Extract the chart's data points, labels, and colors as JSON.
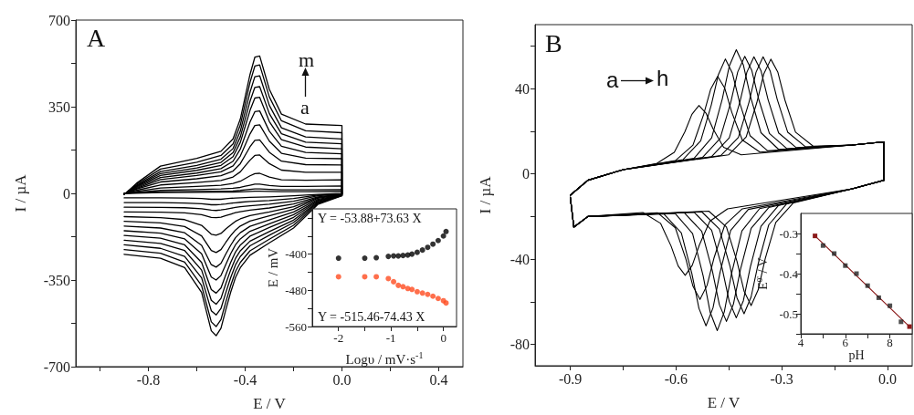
{
  "chart_data": [
    {
      "type": "line",
      "xlabel": "E / V",
      "ylabel": "I / µA",
      "marker": "none",
      "xlim": [
        -1.1,
        0.5
      ],
      "xticks": [
        {
          "value": -1.0,
          "label": null
        },
        -0.8,
        {
          "value": -0.6,
          "label": null
        },
        -0.4,
        {
          "value": -0.2,
          "label": null
        },
        {
          "value": 0,
          "label": "0.0"
        },
        {
          "value": 0.2,
          "label": null
        },
        0.4
      ],
      "ylim": [
        -700,
        700
      ],
      "yticks": [
        -700,
        {
          "value": -525,
          "label": null
        },
        -350,
        {
          "value": -175,
          "label": null
        },
        0,
        {
          "value": 175,
          "label": null
        },
        350,
        {
          "value": 525,
          "label": null
        },
        700
      ],
      "annotations": [
        "A",
        "m",
        "a"
      ],
      "x": [
        -0.9,
        -0.85,
        -0.75,
        -0.6,
        -0.5,
        -0.45,
        -0.42,
        -0.4,
        -0.38,
        -0.36,
        -0.34,
        -0.3,
        -0.25,
        -0.15,
        0,
        0,
        -0.1,
        -0.2,
        -0.3,
        -0.38,
        -0.42,
        -0.44,
        -0.46,
        -0.48,
        -0.5,
        -0.52,
        -0.54,
        -0.58,
        -0.65,
        -0.75,
        -0.9
      ],
      "series": [
        {
          "color": "#000000",
          "values": [
            0,
            1,
            3,
            4,
            5,
            5,
            6,
            7,
            8,
            9,
            9,
            8,
            7,
            7,
            8,
            -1,
            -4,
            -10,
            -14,
            -16,
            -18,
            -19,
            -20,
            -22,
            -24,
            -24,
            -24,
            -21,
            -19,
            -18,
            -18
          ]
        },
        {
          "color": "#000000",
          "values": [
            0,
            2,
            6,
            8,
            9,
            10,
            12,
            14,
            16,
            18,
            18,
            16,
            14,
            14,
            15,
            -2,
            -7,
            -21,
            -29,
            -33,
            -36,
            -38,
            -40,
            -43,
            -45,
            -46,
            -46,
            -42,
            -39,
            -37,
            -37
          ]
        },
        {
          "color": "#000000",
          "values": [
            -1,
            4,
            12,
            15,
            18,
            21,
            24,
            29,
            33,
            37,
            37,
            32,
            28,
            28,
            30,
            -2,
            -10,
            -32,
            -44,
            -50,
            -54,
            -57,
            -60,
            -64,
            -67,
            -69,
            -68,
            -62,
            -58,
            -57,
            -56
          ]
        },
        {
          "color": "#000000",
          "values": [
            -1,
            8,
            22,
            28,
            33,
            40,
            49,
            60,
            71,
            80,
            81,
            66,
            55,
            53,
            55,
            -3,
            -14,
            -43,
            -59,
            -68,
            -74,
            -78,
            -84,
            -90,
            -96,
            -98,
            -97,
            -86,
            -79,
            -76,
            -75
          ]
        },
        {
          "color": "#000000",
          "values": [
            -2,
            12,
            34,
            44,
            52,
            66,
            87,
            111,
            134,
            153,
            155,
            120,
            94,
            85,
            85,
            -4,
            -17,
            -54,
            -75,
            -90,
            -103,
            -113,
            -128,
            -144,
            -162,
            -169,
            -165,
            -129,
            -106,
            -98,
            -94
          ]
        },
        {
          "color": "#000000",
          "values": [
            -2,
            17,
            46,
            59,
            71,
            90,
            120,
            154,
            188,
            214,
            216,
            166,
            130,
            116,
            115,
            -5,
            -20,
            -64,
            -91,
            -112,
            -132,
            -148,
            -171,
            -198,
            -227,
            -239,
            -231,
            -172,
            -134,
            -119,
            -113
          ]
        },
        {
          "color": "#000000",
          "values": [
            -3,
            20,
            56,
            72,
            87,
            111,
            151,
            195,
            240,
            274,
            277,
            211,
            162,
            142,
            140,
            -5,
            -24,
            -75,
            -107,
            -133,
            -159,
            -179,
            -210,
            -245,
            -283,
            -298,
            -288,
            -210,
            -159,
            -140,
            -132
          ]
        },
        {
          "color": "#000000",
          "values": [
            -3,
            23,
            64,
            82,
            100,
            130,
            179,
            233,
            288,
            330,
            333,
            251,
            190,
            165,
            160,
            -6,
            -28,
            -86,
            -123,
            -153,
            -184,
            -208,
            -244,
            -287,
            -332,
            -350,
            -338,
            -244,
            -184,
            -161,
            -151
          ]
        },
        {
          "color": "#000000",
          "values": [
            -3,
            26,
            72,
            93,
            113,
            148,
            206,
            270,
            335,
            385,
            388,
            290,
            217,
            187,
            180,
            -7,
            -31,
            -97,
            -138,
            -173,
            -209,
            -237,
            -279,
            -329,
            -382,
            -403,
            -389,
            -279,
            -208,
            -181,
            -170
          ]
        },
        {
          "color": "#000000",
          "values": [
            -4,
            29,
            80,
            103,
            125,
            165,
            228,
            300,
            372,
            428,
            431,
            322,
            241,
            207,
            200,
            -8,
            -35,
            -108,
            -154,
            -193,
            -232,
            -263,
            -310,
            -365,
            -424,
            -448,
            -432,
            -310,
            -231,
            -202,
            -189
          ]
        },
        {
          "color": "#000000",
          "values": [
            -4,
            32,
            88,
            113,
            138,
            181,
            251,
            330,
            409,
            471,
            475,
            355,
            265,
            228,
            220,
            -8,
            -38,
            -118,
            -169,
            -212,
            -255,
            -289,
            -341,
            -401,
            -465,
            -491,
            -474,
            -341,
            -255,
            -222,
            -208
          ]
        },
        {
          "color": "#000000",
          "values": [
            -4,
            36,
            98,
            126,
            153,
            200,
            276,
            362,
            448,
            514,
            519,
            389,
            293,
            253,
            245,
            -9,
            -41,
            -129,
            -185,
            -232,
            -279,
            -316,
            -373,
            -439,
            -510,
            -538,
            -519,
            -373,
            -278,
            -242,
            -227
          ]
        },
        {
          "color": "#000000",
          "values": [
            -5,
            40,
            110,
            141,
            170,
            220,
            300,
            390,
            480,
            550,
            555,
            420,
            320,
            280,
            274,
            -10,
            -45,
            -140,
            -200,
            -250,
            -300,
            -340,
            -400,
            -470,
            -545,
            -575,
            -555,
            -400,
            -300,
            -262,
            -246
          ]
        }
      ]
    },
    {
      "type": "scatter",
      "xlabel": "Logυ / mV·s$^{-1}$",
      "ylabel": "E / mV",
      "marker": "circle",
      "xlim": [
        -2.5,
        0.25
      ],
      "xticks": [
        -2,
        {
          "value": -1.5,
          "label": null
        },
        -1,
        {
          "value": -0.5,
          "label": null
        },
        0
      ],
      "ylim": [
        -560,
        -300
      ],
      "yticks": [
        -560,
        {
          "value": -520,
          "label": null
        },
        -480,
        {
          "value": -440,
          "label": null
        },
        -400,
        {
          "value": -360,
          "label": null
        },
        {
          "value": -320,
          "label": null
        }
      ],
      "annotations": [
        "Y = -53.88+73.63 X",
        "Y = -515.46-74.43 X"
      ],
      "x": [
        -2,
        -1.5,
        -1.28,
        -1.05,
        -0.95,
        -0.86,
        -0.77,
        -0.68,
        -0.6,
        -0.5,
        -0.4,
        -0.3,
        -0.2,
        -0.1,
        0,
        0.05
      ],
      "series": [
        {
          "color": "#000000",
          "values": [
            -409,
            -409,
            -408,
            -405,
            -404,
            -404,
            -403,
            -402,
            -400,
            -396,
            -391,
            -385,
            -378,
            -370,
            -360,
            -350
          ]
        },
        {
          "color": "#ff4b1f",
          "values": [
            -450,
            -450,
            -450,
            -454,
            -461,
            -469,
            -472,
            -476,
            -478,
            -483,
            -486,
            -489,
            -493,
            -498,
            -503,
            -508
          ]
        }
      ]
    },
    {
      "type": "line",
      "xlabel": "E / V",
      "ylabel": "I / µA",
      "marker": "none",
      "xlim": [
        -1.0,
        0.07
      ],
      "xticks": [
        -0.9,
        {
          "value": -0.75,
          "label": null
        },
        -0.6,
        {
          "value": -0.45,
          "label": null
        },
        -0.3,
        {
          "value": -0.15,
          "label": null
        },
        {
          "value": 0,
          "label": "0.0"
        }
      ],
      "ylim": [
        -90,
        70
      ],
      "yticks": [
        -80,
        {
          "value": -60,
          "label": null
        },
        -40,
        {
          "value": -20,
          "label": null
        },
        0,
        {
          "value": 20,
          "label": null
        },
        40,
        {
          "value": 60,
          "label": null
        }
      ],
      "annotations": [
        "B",
        "a",
        "h"
      ],
      "series": [
        {
          "color": "#000000",
          "x": [
            -0.9,
            -0.85,
            -0.75,
            -0.655,
            -0.605,
            -0.575,
            -0.555,
            -0.535,
            -0.515,
            -0.495,
            -0.465,
            -0.415,
            -0.1,
            -0.01,
            -0.01,
            -0.1,
            -0.454,
            -0.504,
            -0.534,
            -0.554,
            -0.574,
            -0.594,
            -0.614,
            -0.644,
            -0.694,
            -0.85,
            -0.89,
            -0.9
          ],
          "values": [
            -10,
            -3,
            2,
            4.9,
            10.1,
            19.7,
            27.9,
            32.1,
            28.5,
            21.1,
            12.5,
            8.9,
            13.5,
            15,
            -3,
            -7,
            -16.4,
            -22.2,
            -33.4,
            -42.9,
            -47.6,
            -43.2,
            -33.9,
            -23.2,
            -18.1,
            -20,
            -25,
            -11
          ]
        },
        {
          "color": "#000000",
          "x": [
            -0.9,
            -0.85,
            -0.75,
            -0.602,
            -0.552,
            -0.522,
            -0.502,
            -0.482,
            -0.462,
            -0.442,
            -0.412,
            -0.362,
            -0.1,
            -0.01,
            -0.01,
            -0.1,
            -0.412,
            -0.462,
            -0.492,
            -0.512,
            -0.532,
            -0.552,
            -0.572,
            -0.602,
            -0.652,
            -0.85,
            -0.89,
            -0.9
          ],
          "values": [
            -10,
            -3,
            2,
            6.2,
            13.5,
            27.7,
            39.6,
            45.7,
            40.3,
            29.0,
            15.9,
            10.2,
            13.5,
            15,
            -3,
            -7,
            -16.4,
            -24.1,
            -39.3,
            -52.3,
            -58.9,
            -52.7,
            -40.0,
            -25.3,
            -18.3,
            -20,
            -25,
            -11
          ]
        },
        {
          "color": "#000000",
          "x": [
            -0.9,
            -0.85,
            -0.75,
            -0.58,
            -0.53,
            -0.5,
            -0.48,
            -0.46,
            -0.44,
            -0.42,
            -0.39,
            -0.34,
            -0.1,
            -0.01,
            -0.01,
            -0.1,
            -0.395,
            -0.445,
            -0.475,
            -0.495,
            -0.515,
            -0.535,
            -0.555,
            -0.585,
            -0.635,
            -0.85,
            -0.89,
            -0.9
          ],
          "values": [
            -10,
            -3,
            2,
            6.7,
            15.5,
            32.3,
            46.5,
            53.9,
            47.2,
            33.7,
            17.9,
            10.8,
            13.5,
            15,
            -3,
            -7,
            -16.7,
            -26.5,
            -46.1,
            -62.8,
            -71.3,
            -63.1,
            -46.8,
            -27.7,
            -18.7,
            -20,
            -25,
            -11
          ]
        },
        {
          "color": "#000000",
          "x": [
            -0.9,
            -0.85,
            -0.75,
            -0.549,
            -0.499,
            -0.469,
            -0.449,
            -0.429,
            -0.409,
            -0.389,
            -0.359,
            -0.309,
            -0.1,
            -0.01,
            -0.01,
            -0.1,
            -0.363,
            -0.413,
            -0.443,
            -0.463,
            -0.483,
            -0.503,
            -0.523,
            -0.553,
            -0.603,
            -0.85,
            -0.89,
            -0.9
          ],
          "values": [
            -10,
            -3,
            2,
            7.3,
            16.9,
            35.0,
            50.5,
            58.2,
            51.1,
            36.4,
            19.3,
            11.5,
            13.5,
            15,
            -3,
            -7,
            -16.3,
            -26.7,
            -47.2,
            -64.7,
            -73.5,
            -65.0,
            -47.9,
            -28.0,
            -18.5,
            -20,
            -25,
            -11
          ]
        },
        {
          "color": "#000000",
          "x": [
            -0.9,
            -0.85,
            -0.75,
            -0.525,
            -0.475,
            -0.445,
            -0.425,
            -0.405,
            -0.385,
            -0.365,
            -0.335,
            -0.285,
            -0.1,
            -0.01,
            -0.01,
            -0.1,
            -0.337,
            -0.387,
            -0.417,
            -0.437,
            -0.457,
            -0.477,
            -0.497,
            -0.527,
            -0.577,
            -0.85,
            -0.89,
            -0.9
          ],
          "values": [
            -10,
            -3,
            2,
            7.7,
            16.6,
            33.4,
            47.8,
            55.1,
            48.5,
            34.7,
            18.9,
            11.8,
            13.5,
            15,
            -3,
            -7,
            -15.8,
            -25.6,
            -44.7,
            -61.0,
            -69.2,
            -61.4,
            -45.5,
            -27.0,
            -18.2,
            -20,
            -25,
            -11
          ]
        },
        {
          "color": "#000000",
          "x": [
            -0.9,
            -0.85,
            -0.75,
            -0.499,
            -0.449,
            -0.419,
            -0.399,
            -0.379,
            -0.359,
            -0.339,
            -0.309,
            -0.259,
            -0.1,
            -0.01,
            -0.01,
            -0.1,
            -0.309,
            -0.359,
            -0.389,
            -0.409,
            -0.429,
            -0.449,
            -0.469,
            -0.499,
            -0.549,
            -0.85,
            -0.89,
            -0.9
          ],
          "values": [
            -10,
            -3,
            2,
            8.1,
            16.9,
            33.6,
            47.7,
            54.9,
            48.4,
            34.9,
            19.2,
            12.3,
            13.5,
            15,
            -3,
            -7,
            -14.8,
            -24.6,
            -43.5,
            -59.5,
            -67.5,
            -59.9,
            -44.4,
            -26.4,
            -18.0,
            -20,
            -25,
            -11
          ]
        },
        {
          "color": "#000000",
          "x": [
            -0.9,
            -0.85,
            -0.75,
            -0.473,
            -0.423,
            -0.393,
            -0.373,
            -0.353,
            -0.333,
            -0.313,
            -0.283,
            -0.233,
            -0.1,
            -0.01,
            -0.01,
            -0.1,
            -0.287,
            -0.337,
            -0.367,
            -0.387,
            -0.407,
            -0.427,
            -0.447,
            -0.477,
            -0.527,
            -0.85,
            -0.89,
            -0.9
          ],
          "values": [
            -10,
            -3,
            2,
            8.6,
            17.1,
            33.6,
            47.7,
            54.9,
            48.3,
            35.0,
            19.5,
            12.7,
            13.5,
            15,
            -3,
            -7,
            -14.2,
            -23.9,
            -42.2,
            -57.7,
            -65.6,
            -58.2,
            -43.3,
            -25.9,
            -17.8,
            -20,
            -25,
            -11
          ]
        },
        {
          "color": "#000000",
          "x": [
            -0.9,
            -0.85,
            -0.75,
            -0.451,
            -0.401,
            -0.371,
            -0.351,
            -0.331,
            -0.311,
            -0.291,
            -0.261,
            -0.211,
            -0.1,
            -0.01,
            -0.01,
            -0.1,
            -0.267,
            -0.317,
            -0.347,
            -0.367,
            -0.387,
            -0.407,
            -0.427,
            -0.457,
            -0.507,
            -0.85,
            -0.89,
            -0.9
          ],
          "values": [
            -10,
            -3,
            2,
            8.9,
            17.3,
            33.3,
            46.9,
            53.8,
            47.6,
            34.6,
            19.6,
            13.0,
            13.5,
            15,
            -3,
            -7,
            -13.6,
            -22.8,
            -39.8,
            -54.4,
            -61.8,
            -55.0,
            -41.1,
            -24.9,
            -17.5,
            -20,
            -25,
            -11
          ]
        }
      ]
    },
    {
      "type": "scatter",
      "xlabel": "pH",
      "ylabel": "E$^{0'}$ / V",
      "marker": "square",
      "xlim": [
        4,
        9
      ],
      "xticks": [
        4,
        {
          "value": 5,
          "label": null
        },
        6,
        {
          "value": 7,
          "label": null
        },
        8
      ],
      "ylim": [
        -0.55,
        -0.25
      ],
      "yticks": [
        {
          "value": -0.55,
          "label": null
        },
        -0.5,
        {
          "value": -0.45,
          "label": null
        },
        -0.4,
        {
          "value": -0.35,
          "label": null
        },
        -0.3
      ],
      "x": [
        5,
        5.5,
        6,
        6.5,
        7,
        7.5,
        8,
        8.5
      ],
      "series": [
        {
          "color": "#222222",
          "values": [
            -0.33,
            -0.35,
            -0.38,
            -0.4,
            -0.43,
            -0.46,
            -0.48,
            -0.52
          ]
        },
        {
          "type": "line",
          "color": "#8b1a1a",
          "x": [
            4.64,
            8.88
          ],
          "values": [
            -0.306,
            -0.532
          ]
        }
      ]
    }
  ]
}
